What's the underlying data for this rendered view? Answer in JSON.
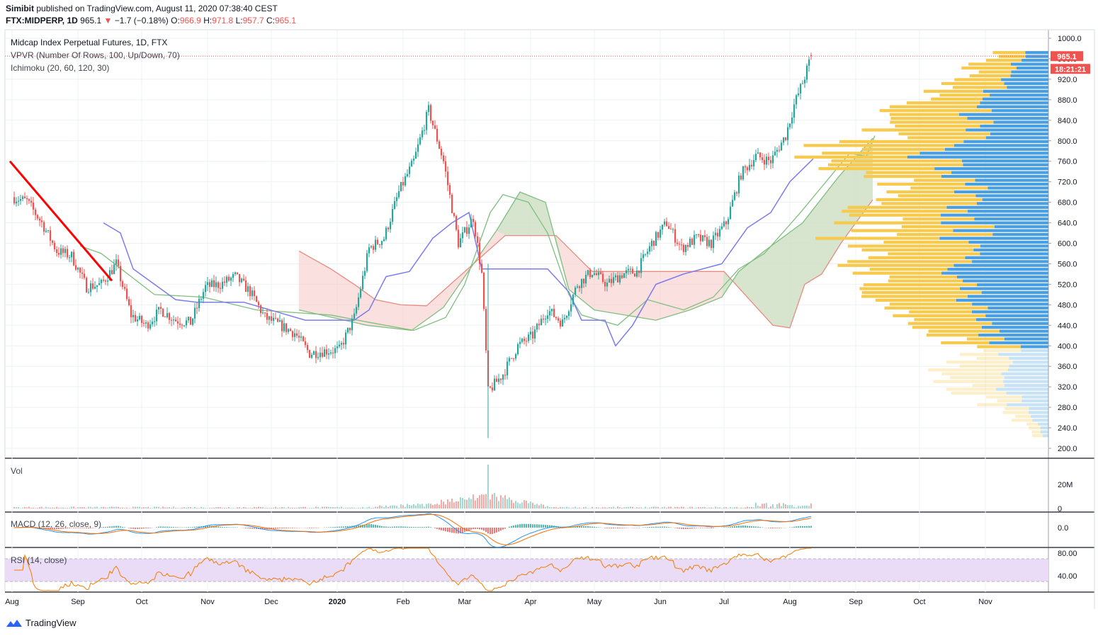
{
  "header": {
    "publisher": "Simibit",
    "published_text": "published on TradingView.com, August 11, 2020 07:38:40 CEST",
    "symbol": "FTX:MIDPERP, 1D",
    "last": "965.1",
    "change_arrow": "▼",
    "change": "−1.7 (−0.18%)",
    "o_label": "O:",
    "o": "966.9",
    "h_label": "H:",
    "h": "971.8",
    "l_label": "L:",
    "l": "957.7",
    "c_label": "C:",
    "c": "965.1"
  },
  "legend": {
    "title": "Midcap Index Perpetual Futures, 1D, FTX",
    "vpvr": "VPVR (Number Of Rows, 100, Up/Down, 70)",
    "ichimoku": "Ichimoku (20, 60, 120, 30)"
  },
  "price_tag": "965.1",
  "countdown_tag": "18:21:21",
  "panes": {
    "vol": "Vol",
    "macd": "MACD (12, 26, close, 9)",
    "rsi": "RSI (14, close)"
  },
  "footer": {
    "brand": "TradingView"
  },
  "colors": {
    "up": "#26a69a",
    "down": "#ef5350",
    "trendline": "#ff0000",
    "tenkan": "#7b7bf0",
    "kijun": "#7fbf7f",
    "span_red": "#e88a80",
    "vpvr_up": "#4a9fe0",
    "vpvr_down": "#f7c94c",
    "rsi_band": "#eadcf7",
    "rsi_line": "#f57c00",
    "macd_line": "#2196f3",
    "signal_line": "#ff6d00"
  },
  "chart_data": {
    "type": "candlestick",
    "title": "Midcap Index Perpetual Futures, 1D, FTX",
    "x_tick_labels": [
      "Aug",
      "Sep",
      "Oct",
      "Nov",
      "Dec",
      "2020",
      "Feb",
      "Mar",
      "Apr",
      "May",
      "Jun",
      "Jul",
      "Aug",
      "Sep",
      "Oct",
      "Nov"
    ],
    "y_tick_labels": [
      "1000.0",
      "960.0",
      "920.0",
      "880.0",
      "840.0",
      "800.0",
      "760.0",
      "720.0",
      "680.0",
      "640.0",
      "600.0",
      "560.0",
      "520.0",
      "480.0",
      "440.0",
      "400.0",
      "360.0",
      "320.0",
      "280.0",
      "240.0",
      "200.0"
    ],
    "ylim": [
      200,
      1000
    ],
    "close_anchors": [
      [
        "2019-08-01",
        690
      ],
      [
        "2019-08-08",
        682
      ],
      [
        "2019-08-15",
        640
      ],
      [
        "2019-08-22",
        585
      ],
      [
        "2019-08-29",
        575
      ],
      [
        "2019-09-05",
        515
      ],
      [
        "2019-09-12",
        520
      ],
      [
        "2019-09-19",
        560
      ],
      [
        "2019-09-26",
        460
      ],
      [
        "2019-10-03",
        440
      ],
      [
        "2019-10-10",
        470
      ],
      [
        "2019-10-17",
        450
      ],
      [
        "2019-10-24",
        445
      ],
      [
        "2019-10-31",
        515
      ],
      [
        "2019-11-07",
        520
      ],
      [
        "2019-11-14",
        535
      ],
      [
        "2019-11-21",
        505
      ],
      [
        "2019-11-28",
        455
      ],
      [
        "2019-12-05",
        440
      ],
      [
        "2019-12-12",
        425
      ],
      [
        "2019-12-19",
        385
      ],
      [
        "2019-12-26",
        390
      ],
      [
        "2020-01-02",
        392
      ],
      [
        "2020-01-09",
        455
      ],
      [
        "2020-01-16",
        590
      ],
      [
        "2020-01-23",
        610
      ],
      [
        "2020-01-30",
        700
      ],
      [
        "2020-02-06",
        760
      ],
      [
        "2020-02-13",
        860
      ],
      [
        "2020-02-20",
        760
      ],
      [
        "2020-02-27",
        600
      ],
      [
        "2020-03-05",
        650
      ],
      [
        "2020-03-09",
        540
      ],
      [
        "2020-03-12",
        310
      ],
      [
        "2020-03-19",
        345
      ],
      [
        "2020-03-26",
        400
      ],
      [
        "2020-04-02",
        420
      ],
      [
        "2020-04-09",
        470
      ],
      [
        "2020-04-16",
        445
      ],
      [
        "2020-04-23",
        520
      ],
      [
        "2020-04-30",
        545
      ],
      [
        "2020-05-07",
        520
      ],
      [
        "2020-05-14",
        540
      ],
      [
        "2020-05-21",
        545
      ],
      [
        "2020-05-28",
        600
      ],
      [
        "2020-06-04",
        640
      ],
      [
        "2020-06-11",
        590
      ],
      [
        "2020-06-18",
        610
      ],
      [
        "2020-06-25",
        600
      ],
      [
        "2020-07-02",
        640
      ],
      [
        "2020-07-09",
        735
      ],
      [
        "2020-07-16",
        770
      ],
      [
        "2020-07-23",
        760
      ],
      [
        "2020-07-30",
        810
      ],
      [
        "2020-08-03",
        870
      ],
      [
        "2020-08-08",
        925
      ],
      [
        "2020-08-11",
        965.1
      ]
    ],
    "last": {
      "open": 966.9,
      "high": 971.8,
      "low": 957.7,
      "close": 965.1
    },
    "trendline": [
      [
        "2019-07-31",
        760
      ],
      [
        "2019-09-17",
        527
      ]
    ],
    "ichimoku": {
      "tenkan": [
        [
          "2019-09-13",
          640
        ],
        [
          "2019-09-21",
          620
        ],
        [
          "2019-09-27",
          550
        ],
        [
          "2019-10-07",
          520
        ],
        [
          "2019-10-17",
          490
        ],
        [
          "2019-10-27",
          485
        ],
        [
          "2019-11-18",
          485
        ],
        [
          "2019-12-17",
          450
        ],
        [
          "2020-01-09",
          450
        ],
        [
          "2020-01-16",
          470
        ],
        [
          "2020-01-24",
          535
        ],
        [
          "2020-02-04",
          545
        ],
        [
          "2020-02-15",
          610
        ],
        [
          "2020-02-24",
          640
        ],
        [
          "2020-03-03",
          660
        ],
        [
          "2020-03-09",
          550
        ],
        [
          "2020-04-09",
          550
        ],
        [
          "2020-04-19",
          505
        ],
        [
          "2020-04-25",
          450
        ],
        [
          "2020-05-06",
          450
        ],
        [
          "2020-05-11",
          400
        ],
        [
          "2020-05-19",
          440
        ],
        [
          "2020-05-30",
          520
        ],
        [
          "2020-06-12",
          540
        ],
        [
          "2020-06-30",
          560
        ],
        [
          "2020-07-12",
          630
        ],
        [
          "2020-07-23",
          660
        ],
        [
          "2020-08-01",
          720
        ],
        [
          "2020-08-12",
          765
        ]
      ],
      "kijun": [
        [
          "2019-09-02",
          595
        ],
        [
          "2019-09-12",
          580
        ],
        [
          "2019-10-07",
          500
        ],
        [
          "2019-10-30",
          495
        ],
        [
          "2019-11-24",
          470
        ],
        [
          "2019-12-29",
          460
        ],
        [
          "2020-01-17",
          445
        ],
        [
          "2020-02-06",
          430
        ],
        [
          "2020-02-21",
          455
        ],
        [
          "2020-03-01",
          520
        ],
        [
          "2020-03-13",
          660
        ],
        [
          "2020-03-19",
          695
        ],
        [
          "2020-03-31",
          680
        ],
        [
          "2020-04-09",
          620
        ],
        [
          "2020-04-19",
          500
        ],
        [
          "2020-04-25",
          460
        ],
        [
          "2020-05-12",
          440
        ],
        [
          "2020-05-26",
          490
        ],
        [
          "2020-06-12",
          470
        ],
        [
          "2020-06-26",
          495
        ],
        [
          "2020-07-08",
          550
        ],
        [
          "2020-07-20",
          580
        ],
        [
          "2020-08-06",
          660
        ],
        [
          "2020-08-29",
          775
        ],
        [
          "2020-09-06",
          770
        ],
        [
          "2020-09-10",
          810
        ]
      ],
      "span_red": [
        [
          "2019-12-14",
          585
        ],
        [
          "2019-12-29",
          550
        ],
        [
          "2020-01-09",
          520
        ],
        [
          "2020-01-19",
          490
        ],
        [
          "2020-01-31",
          480
        ],
        [
          "2020-02-12",
          478
        ],
        [
          "2020-03-20",
          615
        ],
        [
          "2020-04-13",
          615
        ],
        [
          "2020-04-30",
          545
        ],
        [
          "2020-07-01",
          545
        ],
        [
          "2020-07-24",
          440
        ],
        [
          "2020-08-01",
          435
        ],
        [
          "2020-08-08",
          520
        ],
        [
          "2020-08-16",
          540
        ],
        [
          "2020-08-25",
          600
        ],
        [
          "2020-09-01",
          640
        ],
        [
          "2020-09-09",
          685
        ]
      ],
      "span_green": [
        [
          "2019-12-14",
          470
        ],
        [
          "2020-01-15",
          440
        ],
        [
          "2020-02-05",
          430
        ],
        [
          "2020-02-20",
          475
        ],
        [
          "2020-03-16",
          625
        ],
        [
          "2020-03-27",
          700
        ],
        [
          "2020-04-08",
          680
        ],
        [
          "2020-04-19",
          510
        ],
        [
          "2020-05-01",
          470
        ],
        [
          "2020-05-30",
          450
        ],
        [
          "2020-06-15",
          470
        ],
        [
          "2020-06-30",
          495
        ],
        [
          "2020-07-08",
          545
        ],
        [
          "2020-07-20",
          585
        ],
        [
          "2020-08-07",
          640
        ],
        [
          "2020-08-24",
          730
        ],
        [
          "2020-09-09",
          805
        ]
      ]
    },
    "vpvr": {
      "rows": 100,
      "price_range": [
        220,
        975
      ],
      "peaks": [
        [
          985,
          80
        ],
        [
          940,
          110
        ],
        [
          900,
          180
        ],
        [
          860,
          240
        ],
        [
          820,
          220
        ],
        [
          790,
          300
        ],
        [
          760,
          330
        ],
        [
          730,
          250
        ],
        [
          700,
          200
        ],
        [
          670,
          250
        ],
        [
          640,
          270
        ],
        [
          610,
          290
        ],
        [
          580,
          250
        ],
        [
          550,
          260
        ],
        [
          525,
          290
        ],
        [
          500,
          230
        ],
        [
          475,
          200
        ],
        [
          450,
          210
        ],
        [
          420,
          140
        ],
        [
          390,
          110
        ],
        [
          360,
          170
        ],
        [
          330,
          150
        ],
        [
          300,
          100
        ],
        [
          270,
          60
        ],
        [
          240,
          30
        ]
      ],
      "up_share": 0.46
    },
    "volume": {
      "label": "Vol",
      "y_tick_labels": [
        "20M",
        "0"
      ],
      "peak_date": "2020-03-12"
    },
    "macd": {
      "label": "MACD (12, 26, close, 9)",
      "params": [
        12,
        26,
        9
      ],
      "y_tick_labels": [
        "0.0"
      ]
    },
    "rsi": {
      "label": "RSI (14, close)",
      "length": 14,
      "bands": [
        30,
        70
      ],
      "y_tick_labels": [
        "80.00",
        "40.00"
      ]
    }
  }
}
